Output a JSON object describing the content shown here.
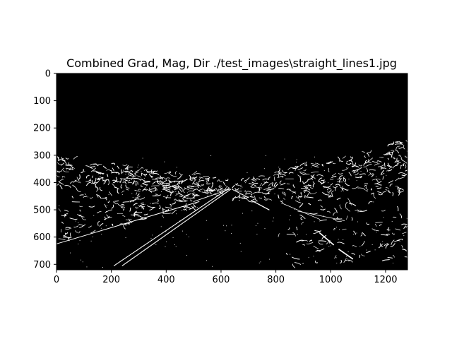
{
  "figure": {
    "title": "Combined Grad, Mag, Dir ./test_images\\straight_lines1.jpg",
    "image_description_colors": {
      "background": "#000000",
      "edges": "#ffffff",
      "frame": "#000000"
    },
    "x_ticks": [
      0,
      200,
      400,
      600,
      800,
      1000,
      1200
    ],
    "y_ticks": [
      0,
      100,
      200,
      300,
      400,
      500,
      600,
      700
    ],
    "x_range": [
      0,
      1280
    ],
    "y_range": [
      720,
      0
    ]
  }
}
